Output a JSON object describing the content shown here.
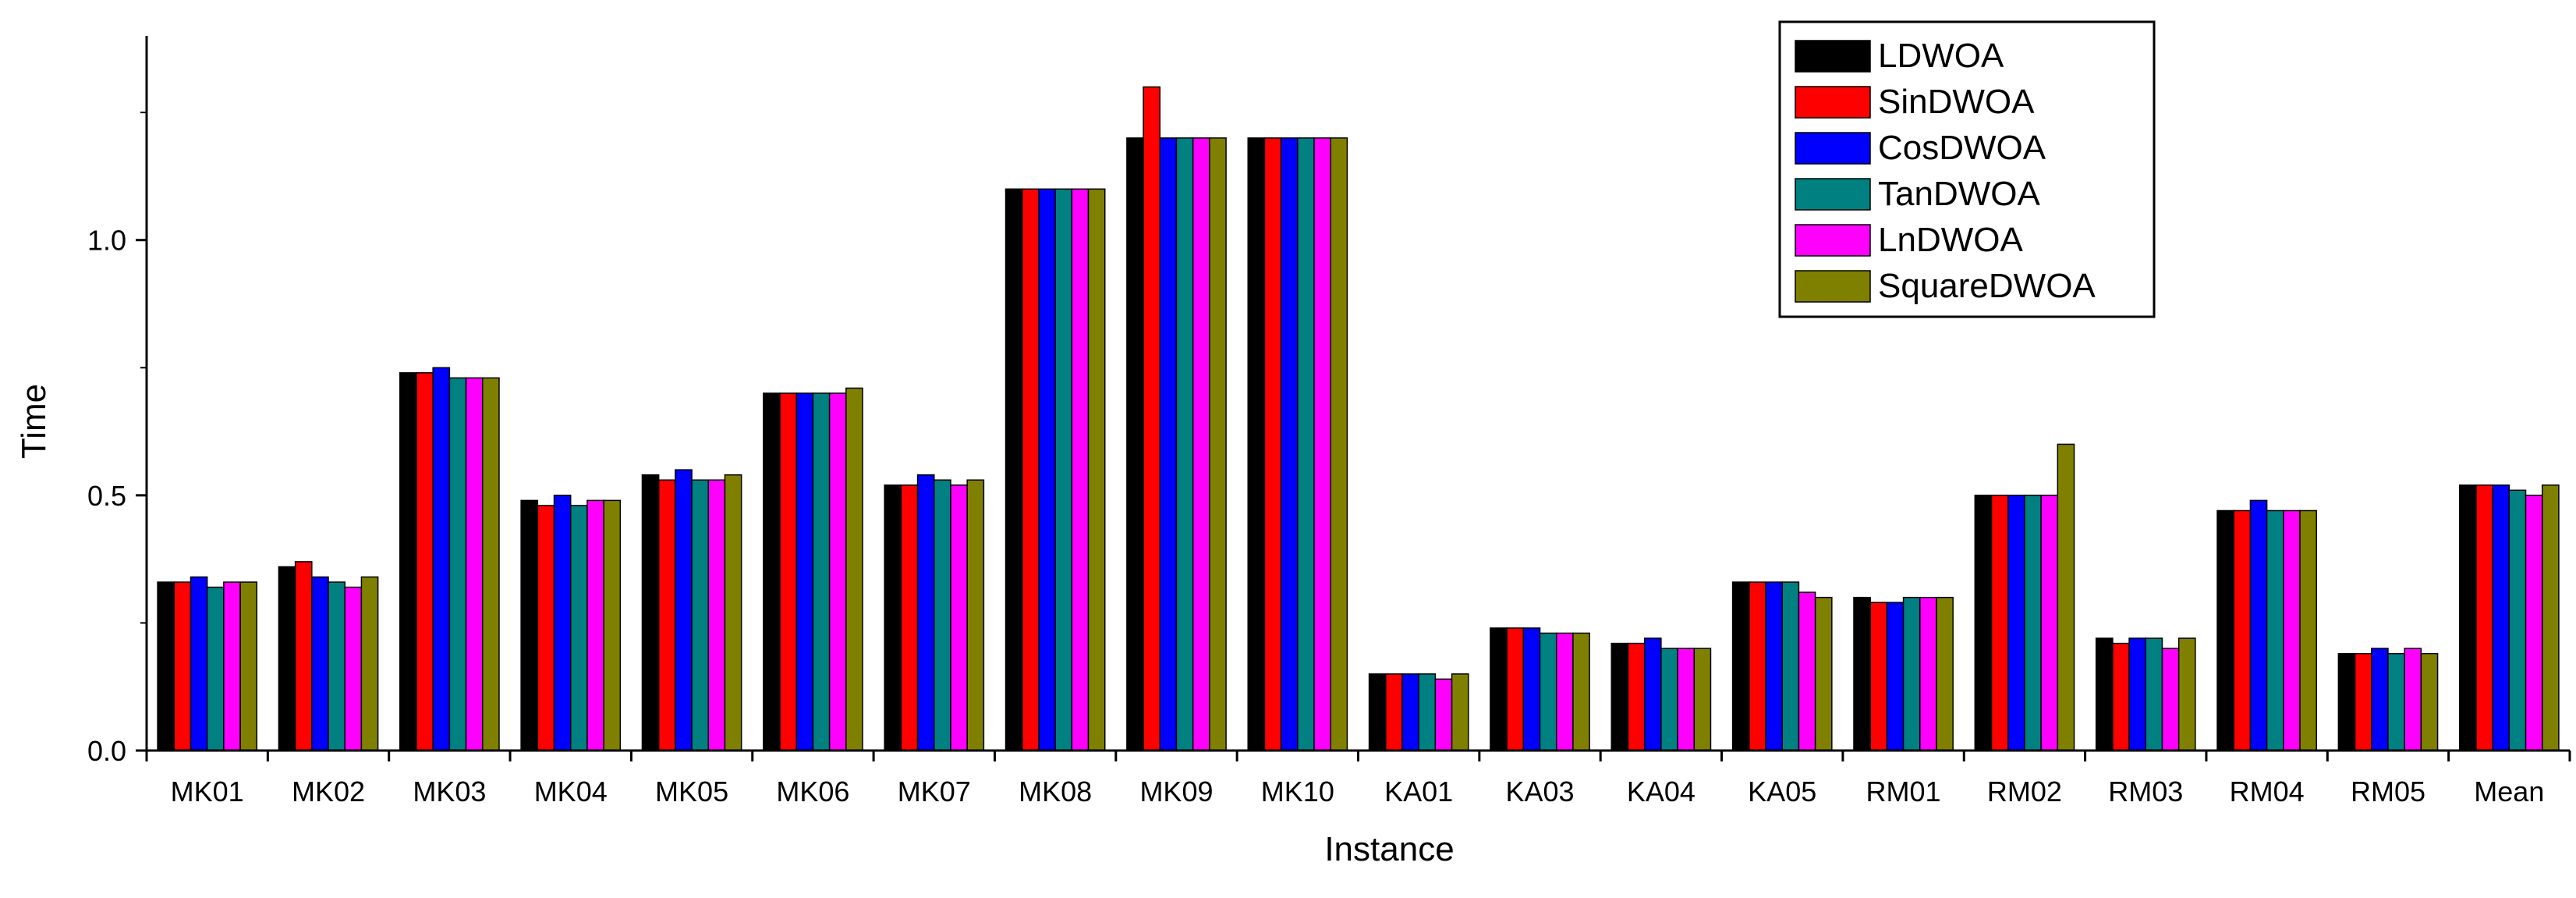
{
  "chart_data": {
    "type": "bar",
    "title": "",
    "xlabel": "Instance",
    "ylabel": "Time",
    "ylim": [
      0,
      1.4
    ],
    "yticks": [
      0.0,
      0.5,
      1.0
    ],
    "ytick_labels": [
      "0.0",
      "0.5",
      "1.0"
    ],
    "grid": false,
    "legend_position": "top-right",
    "categories": [
      "MK01",
      "MK02",
      "MK03",
      "MK04",
      "MK05",
      "MK06",
      "MK07",
      "MK08",
      "MK09",
      "MK10",
      "KA01",
      "KA03",
      "KA04",
      "KA05",
      "RM01",
      "RM02",
      "RM03",
      "RM04",
      "RM05",
      "Mean"
    ],
    "series": [
      {
        "name": "LDWOA",
        "color": "#000000",
        "values": [
          0.33,
          0.36,
          0.74,
          0.49,
          0.54,
          0.7,
          0.52,
          1.1,
          1.2,
          1.2,
          0.15,
          0.24,
          0.21,
          0.33,
          0.3,
          0.5,
          0.22,
          0.47,
          0.19,
          0.52
        ]
      },
      {
        "name": "SinDWOA",
        "color": "#ff0000",
        "values": [
          0.33,
          0.37,
          0.74,
          0.48,
          0.53,
          0.7,
          0.52,
          1.1,
          1.3,
          1.2,
          0.15,
          0.24,
          0.21,
          0.33,
          0.29,
          0.5,
          0.21,
          0.47,
          0.19,
          0.52
        ]
      },
      {
        "name": "CosDWOA",
        "color": "#0000ff",
        "values": [
          0.34,
          0.34,
          0.75,
          0.5,
          0.55,
          0.7,
          0.54,
          1.1,
          1.2,
          1.2,
          0.15,
          0.24,
          0.22,
          0.33,
          0.29,
          0.5,
          0.22,
          0.49,
          0.2,
          0.52
        ]
      },
      {
        "name": "TanDWOA",
        "color": "#008080",
        "values": [
          0.32,
          0.33,
          0.73,
          0.48,
          0.53,
          0.7,
          0.53,
          1.1,
          1.2,
          1.2,
          0.15,
          0.23,
          0.2,
          0.33,
          0.3,
          0.5,
          0.22,
          0.47,
          0.19,
          0.51
        ]
      },
      {
        "name": "LnDWOA",
        "color": "#ff00ff",
        "values": [
          0.33,
          0.32,
          0.73,
          0.49,
          0.53,
          0.7,
          0.52,
          1.1,
          1.2,
          1.2,
          0.14,
          0.23,
          0.2,
          0.31,
          0.3,
          0.5,
          0.2,
          0.47,
          0.2,
          0.5
        ]
      },
      {
        "name": "SquareDWOA",
        "color": "#808000",
        "values": [
          0.33,
          0.34,
          0.73,
          0.49,
          0.54,
          0.71,
          0.53,
          1.1,
          1.2,
          1.2,
          0.15,
          0.23,
          0.2,
          0.3,
          0.3,
          0.6,
          0.22,
          0.47,
          0.19,
          0.52
        ]
      }
    ]
  }
}
